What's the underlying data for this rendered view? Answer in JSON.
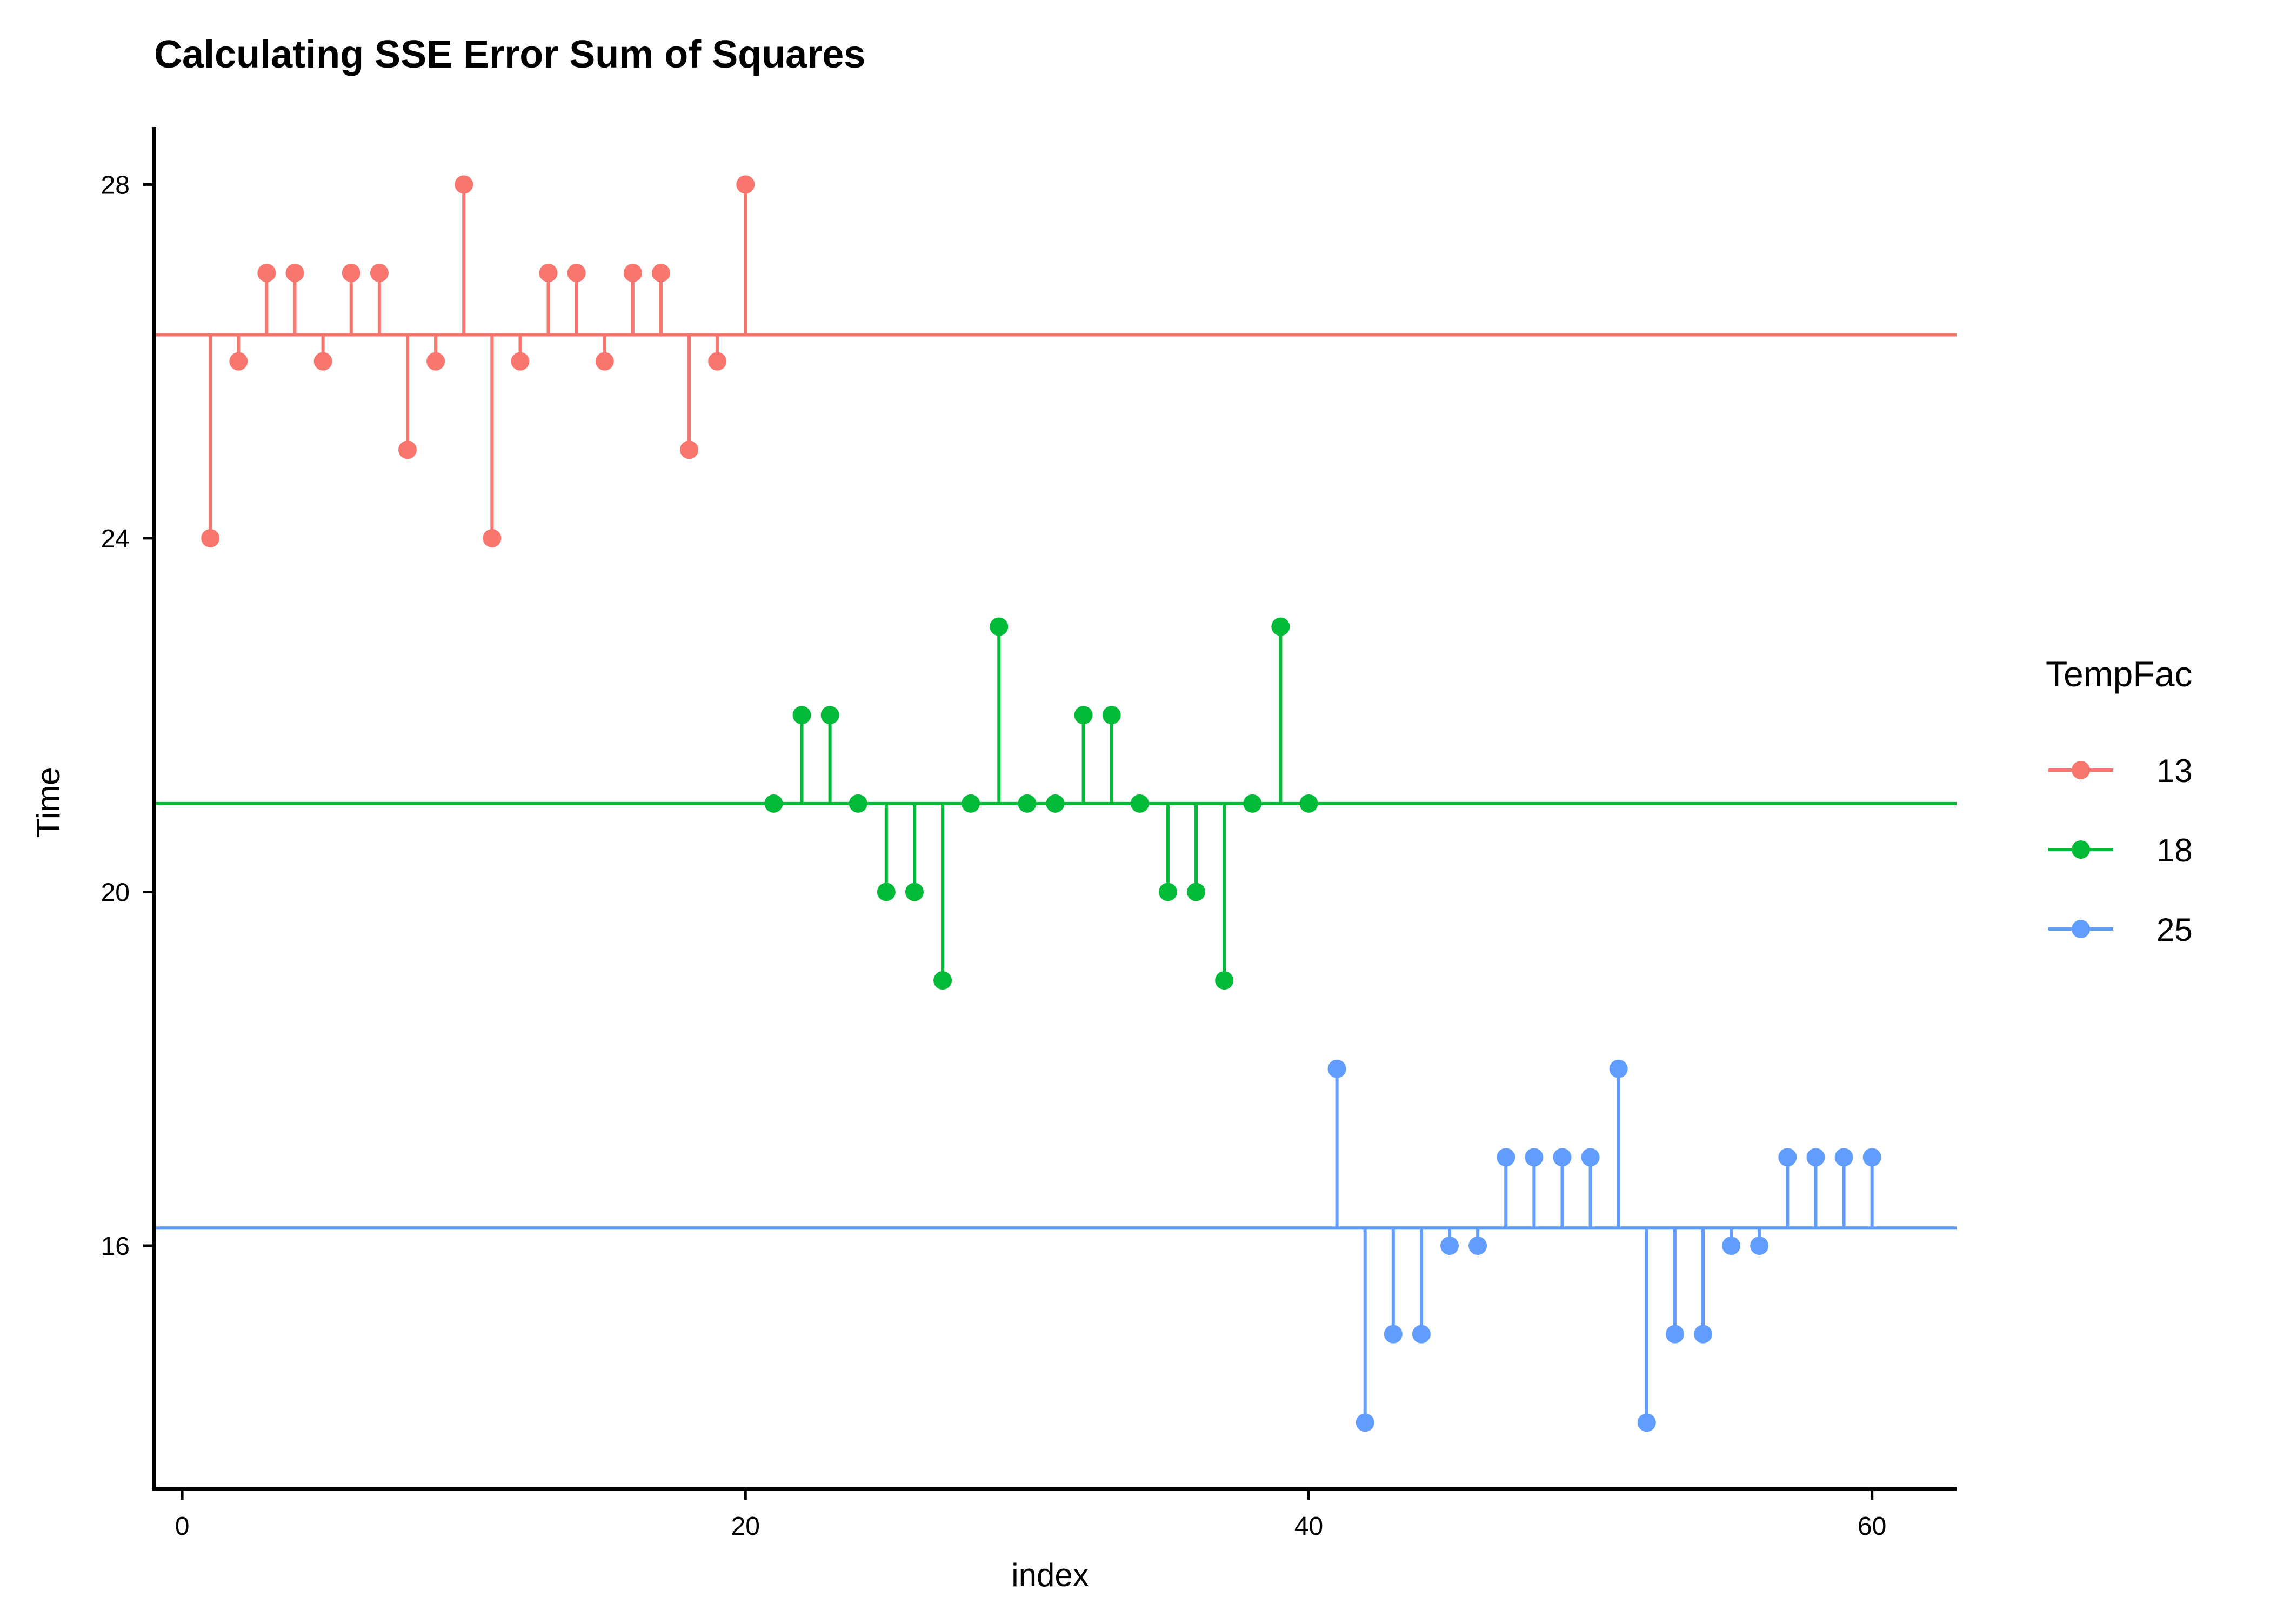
{
  "chart_data": {
    "type": "scatter",
    "title": "Calculating SSE Error Sum of Squares",
    "xlabel": "index",
    "ylabel": "Time",
    "xlim": [
      -1,
      63
    ],
    "ylim": [
      13.25,
      28.65
    ],
    "x_ticks": [
      0,
      20,
      40,
      60
    ],
    "y_ticks": [
      16,
      20,
      24,
      28
    ],
    "grid": false,
    "legend": {
      "title": "TempFac",
      "placement": "right"
    },
    "series": [
      {
        "name": "13",
        "color": "#F8766D",
        "mean": 26.3,
        "x": [
          1,
          2,
          3,
          4,
          5,
          6,
          7,
          8,
          9,
          10,
          11,
          12,
          13,
          14,
          15,
          16,
          17,
          18,
          19,
          20
        ],
        "y": [
          24,
          26,
          27,
          27,
          26,
          27,
          27,
          25,
          26,
          28,
          24,
          26,
          27,
          27,
          26,
          27,
          27,
          25,
          26,
          28
        ]
      },
      {
        "name": "18",
        "color": "#00BA38",
        "mean": 21.0,
        "x": [
          21,
          22,
          23,
          24,
          25,
          26,
          27,
          28,
          29,
          30,
          31,
          32,
          33,
          34,
          35,
          36,
          37,
          38,
          39,
          40
        ],
        "y": [
          21,
          22,
          22,
          21,
          20,
          20,
          19,
          21,
          23,
          21,
          21,
          22,
          22,
          21,
          20,
          20,
          19,
          21,
          23,
          21
        ]
      },
      {
        "name": "25",
        "color": "#619CFF",
        "mean": 16.2,
        "x": [
          41,
          42,
          43,
          44,
          45,
          46,
          47,
          48,
          49,
          50,
          51,
          52,
          53,
          54,
          55,
          56,
          57,
          58,
          59,
          60
        ],
        "y": [
          18,
          14,
          15,
          15,
          16,
          16,
          17,
          17,
          17,
          17,
          18,
          14,
          15,
          15,
          16,
          16,
          17,
          17,
          17,
          17
        ]
      }
    ]
  }
}
